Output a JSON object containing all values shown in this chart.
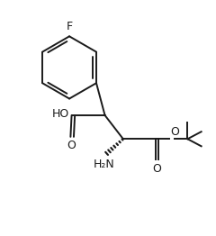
{
  "background": "#ffffff",
  "line_color": "#1a1a1a",
  "line_width": 1.4,
  "figsize": [
    2.4,
    2.62
  ],
  "dpi": 100,
  "xlim": [
    0,
    10
  ],
  "ylim": [
    0,
    10.9
  ]
}
